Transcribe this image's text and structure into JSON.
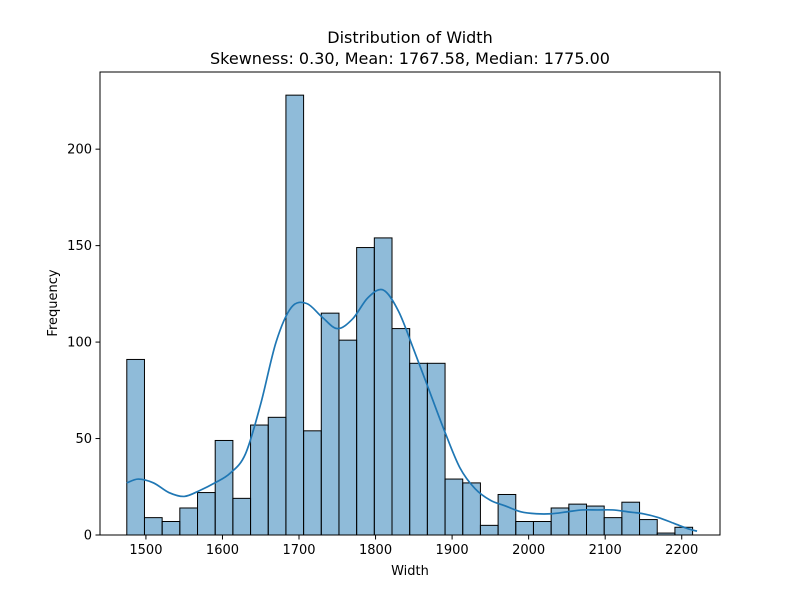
{
  "chart_data": {
    "type": "bar",
    "title": "Distribution of Width",
    "subtitle": "Skewness: 0.30, Mean: 1767.58, Median: 1775.00",
    "xlabel": "Width",
    "ylabel": "Frequency",
    "xlim": [
      1440,
      2250
    ],
    "ylim": [
      0,
      240
    ],
    "x_ticks": [
      1500,
      1600,
      1700,
      1800,
      1900,
      2000,
      2100,
      2200
    ],
    "y_ticks": [
      0,
      50,
      100,
      150,
      200
    ],
    "bin_start": 1475,
    "bin_width": 23.1,
    "counts": [
      91,
      9,
      7,
      14,
      22,
      49,
      19,
      57,
      61,
      228,
      54,
      115,
      101,
      149,
      154,
      107,
      89,
      89,
      29,
      27,
      5,
      21,
      7,
      7,
      14,
      16,
      15,
      9,
      17,
      8,
      1,
      4
    ],
    "bar_color": "#1f77b4",
    "kde": {
      "name": "kde",
      "color": "#1f77b4",
      "x": [
        1475,
        1490,
        1510,
        1530,
        1550,
        1570,
        1590,
        1610,
        1630,
        1650,
        1670,
        1690,
        1710,
        1730,
        1750,
        1770,
        1790,
        1810,
        1830,
        1850,
        1870,
        1890,
        1910,
        1930,
        1950,
        1970,
        1990,
        2010,
        2030,
        2050,
        2070,
        2090,
        2110,
        2130,
        2150,
        2170,
        2190,
        2210,
        2220
      ],
      "y": [
        27,
        29,
        27,
        22,
        20,
        23,
        27,
        32,
        42,
        68,
        100,
        118,
        120,
        113,
        107,
        112,
        123,
        127,
        116,
        96,
        75,
        54,
        35,
        24,
        18,
        15,
        12,
        11,
        11,
        12,
        13,
        13,
        13,
        12,
        11,
        9,
        6,
        3,
        2
      ]
    }
  }
}
